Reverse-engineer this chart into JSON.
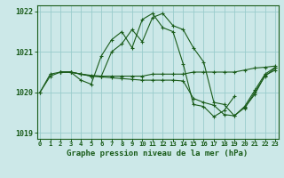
{
  "title": "Graphe pression niveau de la mer (hPa)",
  "bg_color": "#cce8e8",
  "line_color": "#1a5c1a",
  "grid_color": "#99cccc",
  "hours": [
    0,
    1,
    2,
    3,
    4,
    5,
    6,
    7,
    8,
    9,
    10,
    11,
    12,
    13,
    14,
    15,
    16,
    17,
    18,
    19,
    20,
    21,
    22,
    23
  ],
  "series": {
    "line1": [
      1020.0,
      1020.4,
      1020.5,
      1020.5,
      1020.3,
      1020.2,
      1020.9,
      1021.3,
      1021.5,
      1021.1,
      1021.8,
      1021.95,
      1021.6,
      1021.5,
      1020.7,
      1019.7,
      1019.65,
      1019.4,
      1019.55,
      1019.9,
      null,
      null,
      null,
      null
    ],
    "line2": [
      1020.0,
      1020.45,
      1020.5,
      1020.5,
      1020.45,
      1020.4,
      1020.4,
      1020.4,
      1020.4,
      1020.4,
      1020.4,
      1020.45,
      1020.45,
      1020.45,
      1020.45,
      1020.5,
      1020.5,
      1020.5,
      1020.5,
      1020.5,
      1020.55,
      1020.6,
      1020.62,
      1020.65
    ],
    "line3": [
      null,
      null,
      null,
      null,
      null,
      null,
      null,
      null,
      null,
      null,
      null,
      null,
      null,
      null,
      null,
      null,
      null,
      null,
      null,
      null,
      1019.6,
      1020.0,
      1020.4,
      1020.6
    ],
    "line4": [
      null,
      null,
      1020.5,
      1020.5,
      1020.45,
      1020.4,
      1020.38,
      1020.36,
      1020.34,
      1020.32,
      1020.3,
      1020.3,
      1020.3,
      1020.3,
      1020.28,
      1019.85,
      1019.75,
      1019.68,
      1019.45,
      1019.42,
      1019.62,
      1019.95,
      1020.42,
      1020.55
    ],
    "line5": [
      null,
      null,
      1020.5,
      1020.5,
      1020.45,
      1020.42,
      1020.4,
      1021.0,
      1021.2,
      1021.55,
      1021.25,
      1021.85,
      1021.95,
      1021.65,
      1021.55,
      1021.1,
      1020.75,
      1019.75,
      1019.7,
      1019.42,
      1019.65,
      1020.05,
      1020.45,
      1020.62
    ]
  },
  "ylim": [
    1018.85,
    1022.15
  ],
  "yticks": [
    1019,
    1020,
    1021,
    1022
  ],
  "xlim": [
    -0.3,
    23.3
  ]
}
